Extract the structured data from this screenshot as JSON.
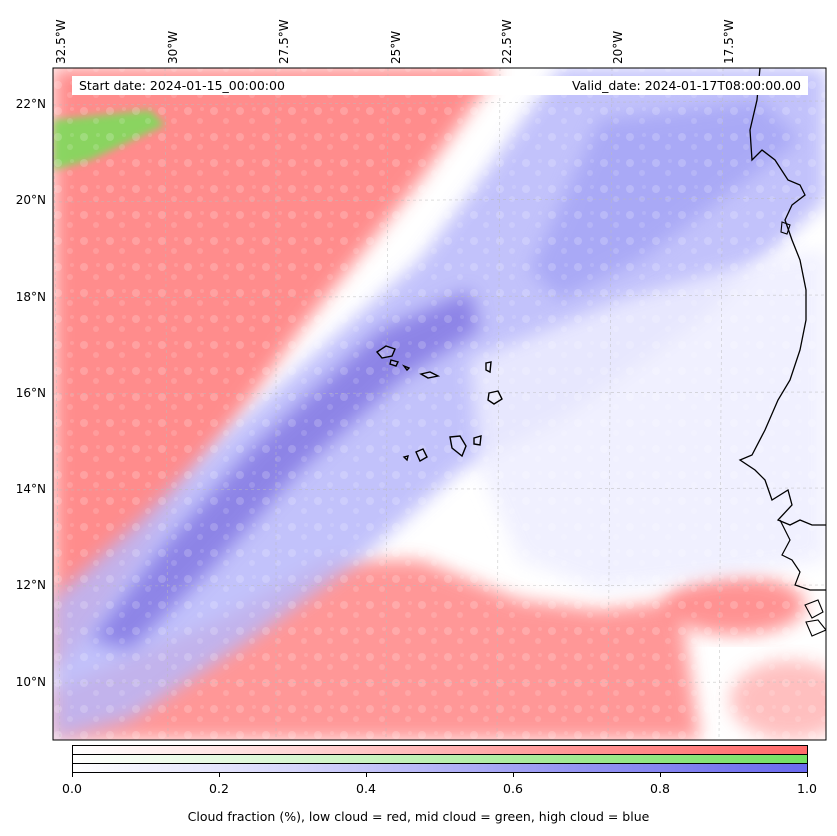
{
  "map": {
    "info": {
      "start_date": "Start date: 2024-01-15_00:00:00",
      "valid_date": "Valid_date: 2024-01-17T08:00:00.00"
    },
    "lon_ticks": [
      "32.5°W",
      "30°W",
      "27.5°W",
      "25°W",
      "22.5°W",
      "20°W",
      "17.5°W"
    ],
    "lat_ticks": [
      "22°N",
      "20°N",
      "18°N",
      "16°N",
      "14°N",
      "12°N",
      "10°N"
    ],
    "layers": {
      "low_cloud_color": "#ff7070",
      "mid_cloud_color": "#7edc5c",
      "high_cloud_color": "#6a6aee",
      "coastline_color": "#000000"
    }
  },
  "colorbar": {
    "tick_labels": [
      "0.0",
      "0.2",
      "0.4",
      "0.6",
      "0.8",
      "1.0"
    ],
    "caption": "Cloud fraction (%), low cloud = red, mid cloud = green, high cloud = blue"
  }
}
